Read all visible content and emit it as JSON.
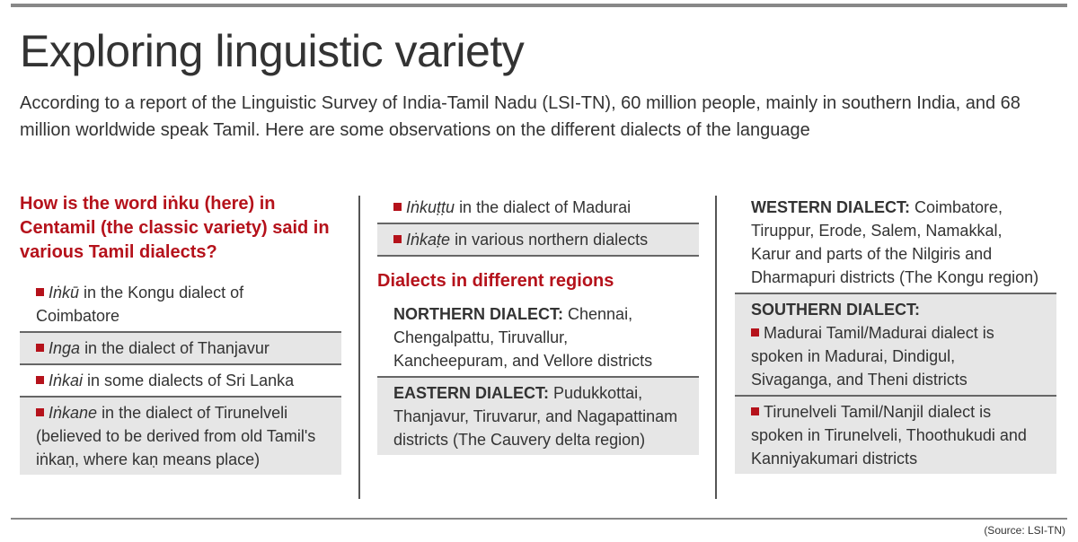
{
  "header": {
    "title": "Exploring linguistic variety",
    "intro": "According to a report of the Linguistic Survey of India-Tamil Nadu (LSI-TN), 60 million people, mainly in southern India, and 68 million worldwide speak Tamil. Here are some observations on the different dialects of the language"
  },
  "word_question": {
    "heading": "How is the word iṅku (here) in Centamil (the classic variety) said in various Tamil dialects?",
    "items": [
      {
        "term": "Iṅkū",
        "text": "in the Kongu dialect of Coimbatore"
      },
      {
        "term": "Inga",
        "text": "in the dialect of Thanjavur"
      },
      {
        "term": "Iṅkai",
        "text": "in some dialects of Sri Lanka"
      },
      {
        "term": "Iṅkane",
        "text": "in the dialect of Tirunelveli (believed to be derived from old Tamil's iṅkaṇ, where kaṇ means place)"
      },
      {
        "term": "Iṅkuṭṭu",
        "text": "in the dialect of Madurai"
      },
      {
        "term": "Iṅkaṭe",
        "text": "in various northern dialects"
      }
    ]
  },
  "regions": {
    "heading": "Dialects in different regions",
    "dialects": [
      {
        "name": "NORTHERN DIALECT:",
        "text": "Chennai, Chengalpattu, Tiruvallur, Kancheepuram, and Vellore districts"
      },
      {
        "name": "EASTERN DIALECT:",
        "text": "Pudukkottai, Thanjavur, Tiruvarur, and Nagapattinam districts (The Cauvery delta region)"
      },
      {
        "name": "WESTERN DIALECT:",
        "text": "Coimbatore, Tiruppur, Erode, Salem, Namakkal, Karur and parts of the Nilgiris and Dharmapuri districts (The Kongu region)"
      },
      {
        "name": "SOUTHERN DIALECT:",
        "items": [
          "Madurai Tamil/Madurai dialect is spoken in Madurai, Dindigul, Sivaganga, and Theni districts",
          "Tirunelveli Tamil/Nanjil dialect is spoken in Tirunelveli, Thoothukudi and Kanniyakumari districts"
        ]
      }
    ]
  },
  "source": "(Source: LSI-TN)"
}
